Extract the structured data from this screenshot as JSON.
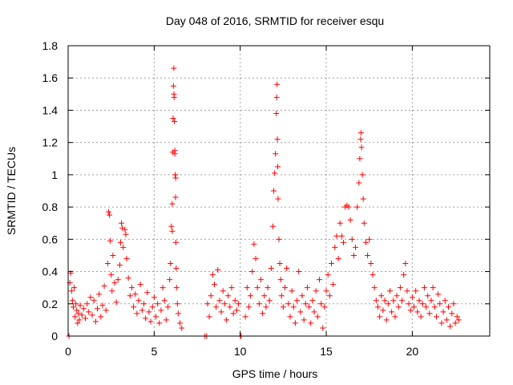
{
  "chart_data": {
    "type": "scatter",
    "title": "Day 048 of 2016, SRMTID for receiver esqu",
    "xlabel": "GPS time / hours",
    "ylabel": "SRMTID / TECUs",
    "xlim": [
      0,
      24.5
    ],
    "ylim": [
      0,
      1.8
    ],
    "xticks": [
      0,
      5,
      10,
      15,
      20
    ],
    "yticks": [
      0,
      0.2,
      0.4,
      0.6,
      0.8,
      1.0,
      1.2,
      1.4,
      1.6,
      1.8
    ],
    "xtick_labels": [
      "0",
      "5",
      "10",
      "15",
      "20"
    ],
    "ytick_labels": [
      "0",
      "0.2",
      "0.4",
      "0.6",
      "0.8",
      "1",
      "1.2",
      "1.4",
      "1.6",
      "1.8"
    ],
    "grid": true,
    "marker": "+",
    "color": "#ff0000",
    "series": [
      {
        "name": "SRMTID",
        "points": [
          [
            0.05,
            0.0
          ],
          [
            0.1,
            0.33
          ],
          [
            0.15,
            0.39
          ],
          [
            0.2,
            0.28
          ],
          [
            0.25,
            0.22
          ],
          [
            0.3,
            0.18
          ],
          [
            0.35,
            0.3
          ],
          [
            0.4,
            0.12
          ],
          [
            0.45,
            0.2
          ],
          [
            0.5,
            0.16
          ],
          [
            0.55,
            0.08
          ],
          [
            0.6,
            0.14
          ],
          [
            0.65,
            0.1
          ],
          [
            0.7,
            0.19
          ],
          [
            0.8,
            0.13
          ],
          [
            0.9,
            0.17
          ],
          [
            1.0,
            0.11
          ],
          [
            1.1,
            0.2
          ],
          [
            1.2,
            0.15
          ],
          [
            1.3,
            0.24
          ],
          [
            1.4,
            0.13
          ],
          [
            1.5,
            0.22
          ],
          [
            1.6,
            0.09
          ],
          [
            1.7,
            0.17
          ],
          [
            1.8,
            0.26
          ],
          [
            1.9,
            0.12
          ],
          [
            2.0,
            0.19
          ],
          [
            2.1,
            0.31
          ],
          [
            2.2,
            0.16
          ],
          [
            2.3,
            0.45
          ],
          [
            2.35,
            0.77
          ],
          [
            2.4,
            0.75
          ],
          [
            2.45,
            0.59
          ],
          [
            2.5,
            0.38
          ],
          [
            2.55,
            0.28
          ],
          [
            2.6,
            0.5
          ],
          [
            2.7,
            0.33
          ],
          [
            2.8,
            0.21
          ],
          [
            2.9,
            0.35
          ],
          [
            3.0,
            0.44
          ],
          [
            3.05,
            0.58
          ],
          [
            3.1,
            0.7
          ],
          [
            3.15,
            0.67
          ],
          [
            3.2,
            0.55
          ],
          [
            3.3,
            0.66
          ],
          [
            3.35,
            0.63
          ],
          [
            3.4,
            0.48
          ],
          [
            3.5,
            0.36
          ],
          [
            3.6,
            0.25
          ],
          [
            3.7,
            0.3
          ],
          [
            3.8,
            0.18
          ],
          [
            3.9,
            0.26
          ],
          [
            4.0,
            0.14
          ],
          [
            4.1,
            0.22
          ],
          [
            4.2,
            0.32
          ],
          [
            4.3,
            0.16
          ],
          [
            4.4,
            0.2
          ],
          [
            4.5,
            0.11
          ],
          [
            4.6,
            0.27
          ],
          [
            4.7,
            0.15
          ],
          [
            4.8,
            0.09
          ],
          [
            4.9,
            0.18
          ],
          [
            5.0,
            0.24
          ],
          [
            5.1,
            0.12
          ],
          [
            5.2,
            0.2
          ],
          [
            5.3,
            0.08
          ],
          [
            5.4,
            0.16
          ],
          [
            5.5,
            0.3
          ],
          [
            5.6,
            0.22
          ],
          [
            5.7,
            0.1
          ],
          [
            5.8,
            0.18
          ],
          [
            5.9,
            0.35
          ],
          [
            5.95,
            0.45
          ],
          [
            6.0,
            0.68
          ],
          [
            6.05,
            0.82
          ],
          [
            6.08,
            1.14
          ],
          [
            6.1,
            1.35
          ],
          [
            6.12,
            1.55
          ],
          [
            6.14,
            1.66
          ],
          [
            6.16,
            1.48
          ],
          [
            6.18,
            1.33
          ],
          [
            6.2,
            1.13
          ],
          [
            6.22,
            1.0
          ],
          [
            6.24,
            0.86
          ],
          [
            6.26,
            0.58
          ],
          [
            6.28,
            0.42
          ],
          [
            6.3,
            0.3
          ],
          [
            6.35,
            0.2
          ],
          [
            6.4,
            0.14
          ],
          [
            6.5,
            0.08
          ],
          [
            6.6,
            0.05
          ],
          [
            6.2,
            1.15
          ],
          [
            6.25,
            0.98
          ],
          [
            6.15,
            1.5
          ],
          [
            6.05,
            0.65
          ],
          [
            7.95,
            0.0
          ],
          [
            8.05,
            0.0
          ],
          [
            8.1,
            0.2
          ],
          [
            8.2,
            0.12
          ],
          [
            8.3,
            0.25
          ],
          [
            8.4,
            0.38
          ],
          [
            8.5,
            0.32
          ],
          [
            8.6,
            0.18
          ],
          [
            8.7,
            0.41
          ],
          [
            8.8,
            0.22
          ],
          [
            8.9,
            0.15
          ],
          [
            9.0,
            0.28
          ],
          [
            9.1,
            0.2
          ],
          [
            9.2,
            0.1
          ],
          [
            9.3,
            0.25
          ],
          [
            9.4,
            0.18
          ],
          [
            9.5,
            0.3
          ],
          [
            9.6,
            0.14
          ],
          [
            9.7,
            0.22
          ],
          [
            9.8,
            0.16
          ],
          [
            9.9,
            0.2
          ],
          [
            10.0,
            0.0
          ],
          [
            10.05,
            0.0
          ],
          [
            10.3,
            0.12
          ],
          [
            10.4,
            0.3
          ],
          [
            10.5,
            0.18
          ],
          [
            10.6,
            0.25
          ],
          [
            10.7,
            0.4
          ],
          [
            10.8,
            0.57
          ],
          [
            10.9,
            0.48
          ],
          [
            11.0,
            0.3
          ],
          [
            11.1,
            0.2
          ],
          [
            11.2,
            0.35
          ],
          [
            11.3,
            0.14
          ],
          [
            11.4,
            0.25
          ],
          [
            11.5,
            0.18
          ],
          [
            11.6,
            0.3
          ],
          [
            11.7,
            0.22
          ],
          [
            11.8,
            0.42
          ],
          [
            11.9,
            0.68
          ],
          [
            11.95,
            0.9
          ],
          [
            12.0,
            1.01
          ],
          [
            12.05,
            1.13
          ],
          [
            12.1,
            1.38
          ],
          [
            12.12,
            1.48
          ],
          [
            12.14,
            1.56
          ],
          [
            12.16,
            1.22
          ],
          [
            12.18,
            1.05
          ],
          [
            12.2,
            0.85
          ],
          [
            12.25,
            0.6
          ],
          [
            12.3,
            0.45
          ],
          [
            12.35,
            0.35
          ],
          [
            12.4,
            0.25
          ],
          [
            12.5,
            0.18
          ],
          [
            12.6,
            0.3
          ],
          [
            12.7,
            0.42
          ],
          [
            12.8,
            0.2
          ],
          [
            12.9,
            0.12
          ],
          [
            13.0,
            0.28
          ],
          [
            13.1,
            0.18
          ],
          [
            13.2,
            0.08
          ],
          [
            13.3,
            0.22
          ],
          [
            13.4,
            0.4
          ],
          [
            13.5,
            0.15
          ],
          [
            13.6,
            0.25
          ],
          [
            13.7,
            0.1
          ],
          [
            13.8,
            0.2
          ],
          [
            13.9,
            0.3
          ],
          [
            14.0,
            0.18
          ],
          [
            14.1,
            0.08
          ],
          [
            14.2,
            0.22
          ],
          [
            14.3,
            0.15
          ],
          [
            14.4,
            0.28
          ],
          [
            14.5,
            0.12
          ],
          [
            14.6,
            0.35
          ],
          [
            14.7,
            0.2
          ],
          [
            14.8,
            0.05
          ],
          [
            14.9,
            0.18
          ],
          [
            15.0,
            0.28
          ],
          [
            15.1,
            0.38
          ],
          [
            15.2,
            0.25
          ],
          [
            15.3,
            0.45
          ],
          [
            15.4,
            0.32
          ],
          [
            15.5,
            0.55
          ],
          [
            15.6,
            0.62
          ],
          [
            15.7,
            0.48
          ],
          [
            15.8,
            0.7
          ],
          [
            15.9,
            0.62
          ],
          [
            16.0,
            0.58
          ],
          [
            16.1,
            0.8
          ],
          [
            16.2,
            0.81
          ],
          [
            16.3,
            0.8
          ],
          [
            16.4,
            0.72
          ],
          [
            16.5,
            0.6
          ],
          [
            16.6,
            0.5
          ],
          [
            16.7,
            0.55
          ],
          [
            16.8,
            0.8
          ],
          [
            16.9,
            0.95
          ],
          [
            16.95,
            1.1
          ],
          [
            17.0,
            1.22
          ],
          [
            17.02,
            1.26
          ],
          [
            17.05,
            1.17
          ],
          [
            17.1,
            1.0
          ],
          [
            17.15,
            0.85
          ],
          [
            17.2,
            0.7
          ],
          [
            17.3,
            0.58
          ],
          [
            17.4,
            0.5
          ],
          [
            17.5,
            0.6
          ],
          [
            17.6,
            0.45
          ],
          [
            17.7,
            0.38
          ],
          [
            17.8,
            0.3
          ],
          [
            17.9,
            0.22
          ],
          [
            18.0,
            0.18
          ],
          [
            18.1,
            0.12
          ],
          [
            18.2,
            0.25
          ],
          [
            18.3,
            0.16
          ],
          [
            18.4,
            0.22
          ],
          [
            18.5,
            0.1
          ],
          [
            18.6,
            0.2
          ],
          [
            18.7,
            0.28
          ],
          [
            18.8,
            0.15
          ],
          [
            18.9,
            0.22
          ],
          [
            19.0,
            0.12
          ],
          [
            19.1,
            0.25
          ],
          [
            19.2,
            0.18
          ],
          [
            19.3,
            0.3
          ],
          [
            19.4,
            0.22
          ],
          [
            19.5,
            0.38
          ],
          [
            19.6,
            0.45
          ],
          [
            19.7,
            0.28
          ],
          [
            19.8,
            0.2
          ],
          [
            19.9,
            0.16
          ],
          [
            20.0,
            0.24
          ],
          [
            20.1,
            0.18
          ],
          [
            20.2,
            0.28
          ],
          [
            20.3,
            0.15
          ],
          [
            20.4,
            0.22
          ],
          [
            20.5,
            0.12
          ],
          [
            20.6,
            0.2
          ],
          [
            20.7,
            0.3
          ],
          [
            20.8,
            0.18
          ],
          [
            20.9,
            0.25
          ],
          [
            21.0,
            0.14
          ],
          [
            21.1,
            0.22
          ],
          [
            21.2,
            0.3
          ],
          [
            21.3,
            0.18
          ],
          [
            21.4,
            0.12
          ],
          [
            21.5,
            0.26
          ],
          [
            21.6,
            0.2
          ],
          [
            21.7,
            0.08
          ],
          [
            21.8,
            0.15
          ],
          [
            21.9,
            0.22
          ],
          [
            22.0,
            0.1
          ],
          [
            22.1,
            0.18
          ],
          [
            22.2,
            0.06
          ],
          [
            22.3,
            0.14
          ],
          [
            22.4,
            0.2
          ],
          [
            22.5,
            0.08
          ],
          [
            22.6,
            0.12
          ],
          [
            22.7,
            0.1
          ]
        ]
      }
    ]
  }
}
